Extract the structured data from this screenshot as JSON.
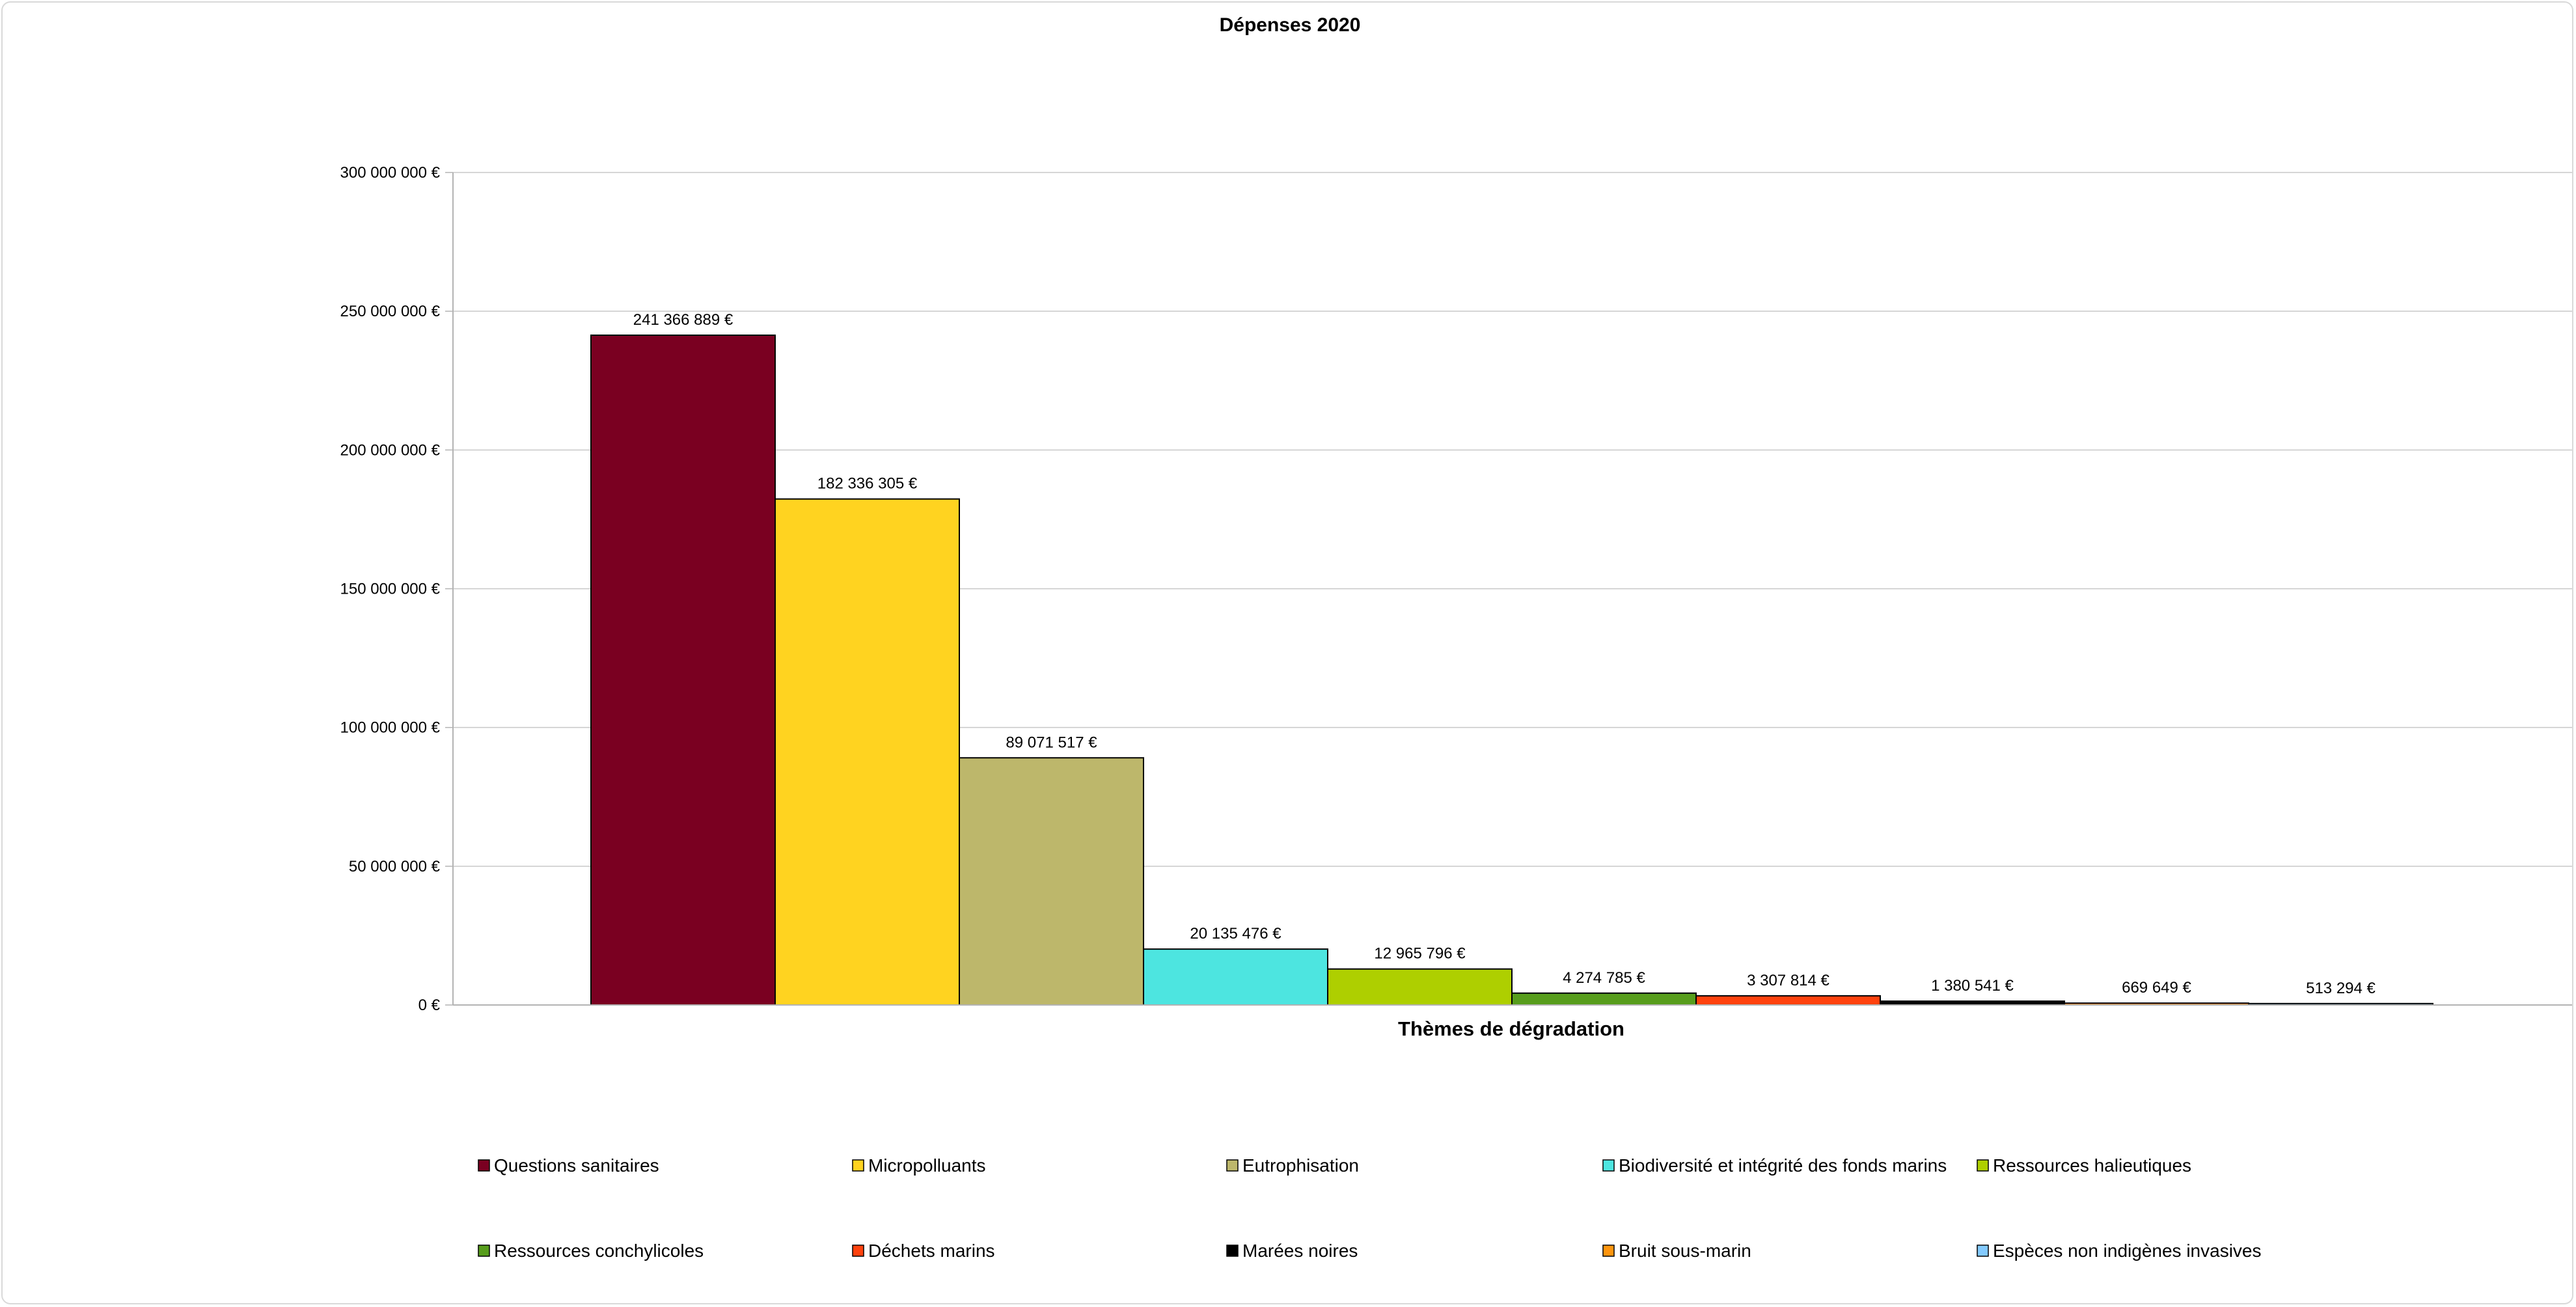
{
  "chart_data": {
    "type": "bar",
    "title": "Dépenses 2020",
    "xlabel": "Thèmes de dégradation",
    "ylabel": "",
    "ylim": [
      0,
      300000000
    ],
    "yticks": [
      0,
      50000000,
      100000000,
      150000000,
      200000000,
      250000000,
      300000000
    ],
    "ytick_labels": [
      "0 €",
      "50 000 000 €",
      "100 000 000 €",
      "150 000 000 €",
      "200 000 000 €",
      "250 000 000 €",
      "300 000 000 €"
    ],
    "grid": true,
    "legend_position": "bottom",
    "categories": [
      "Questions sanitaires",
      "Micropolluants",
      "Eutrophisation",
      "Biodiversité et intégrité des fonds marins",
      "Ressources halieutiques",
      "Ressources conchylicoles",
      "Déchets marins",
      "Marées noires",
      "Bruit sous-marin",
      "Espèces non indigènes invasives"
    ],
    "values": [
      241366889,
      182336305,
      89071517,
      20135476,
      12965796,
      4274785,
      3307814,
      1380541,
      669649,
      513294
    ],
    "data_labels": [
      "241 366 889 €",
      "182 336 305 €",
      "89 071 517 €",
      "20 135 476 €",
      "12 965 796 €",
      "4 274 785 €",
      "3 307 814 €",
      "1 380 541 €",
      "669 649 €",
      "513 294 €"
    ],
    "colors": [
      "#7a0021",
      "#ffd320",
      "#bdb76b",
      "#4de5e0",
      "#aecf00",
      "#579d1c",
      "#ff420e",
      "#000000",
      "#ff950e",
      "#83caff"
    ]
  }
}
